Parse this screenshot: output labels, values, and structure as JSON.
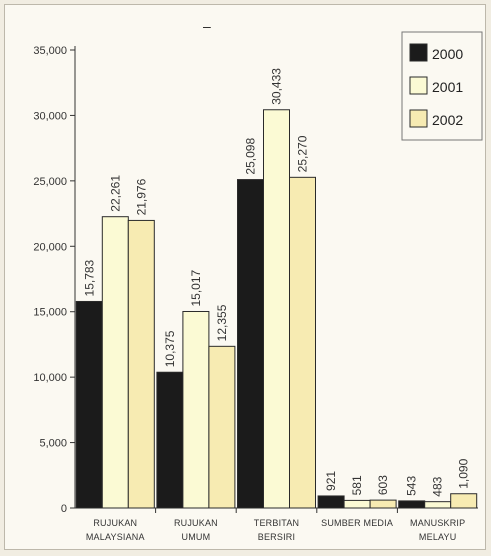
{
  "chart_data": {
    "type": "bar",
    "categories": [
      [
        "RUJUKAN",
        "MALAYSIANA"
      ],
      [
        "RUJUKAN",
        "UMUM"
      ],
      [
        "TERBITAN",
        "BERSIRI"
      ],
      [
        "SUMBER MEDIA"
      ],
      [
        "MANUSKRIP",
        "MELAYU"
      ]
    ],
    "series": [
      {
        "name": "2000",
        "color": "#1b1b1b",
        "values": [
          15783,
          10375,
          25098,
          921,
          543
        ],
        "labels": [
          "15,783",
          "10,375",
          "25,098",
          "921",
          "543"
        ]
      },
      {
        "name": "2001",
        "color": "#fbfad4",
        "values": [
          22261,
          15017,
          30433,
          581,
          483
        ],
        "labels": [
          "22,261",
          "15,017",
          "30,433",
          "581",
          "483"
        ]
      },
      {
        "name": "2002",
        "color": "#f7ebb2",
        "values": [
          21976,
          12355,
          25270,
          603,
          1090
        ],
        "labels": [
          "21,976",
          "12,355",
          "25,270",
          "603",
          "1,090"
        ]
      }
    ],
    "ylim": [
      0,
      35000
    ],
    "yticks": [
      0,
      5000,
      10000,
      15000,
      20000,
      25000,
      30000,
      35000
    ],
    "ytick_labels": [
      "0",
      "5,000",
      "10,000",
      "15,000",
      "20,000",
      "25,000",
      "30,000",
      "35,000"
    ],
    "legend_position": "top-right",
    "grid": false
  },
  "top_mark": "–"
}
